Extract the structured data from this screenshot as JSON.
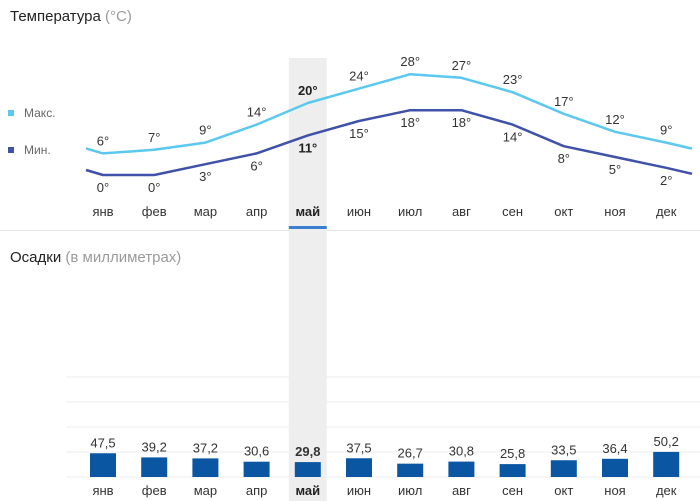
{
  "temperature": {
    "title": "Температура",
    "unit": "(°C)"
  },
  "precipitation": {
    "title": "Осадки",
    "unit": "(в миллиметрах)"
  },
  "selected_month_index": 4,
  "colors": {
    "max": "#5bc8f0",
    "min": "#3f51a8",
    "bar": "#0a56a3",
    "highlight": "#eeeeee",
    "selector": "#3a7fd0",
    "grid": "#eeeeee"
  },
  "chart_data": [
    {
      "type": "line",
      "categories": [
        "янв",
        "фев",
        "мар",
        "апр",
        "май",
        "июн",
        "июл",
        "авг",
        "сен",
        "окт",
        "ноя",
        "дек"
      ],
      "series": [
        {
          "name": "Макс.",
          "values": [
            6,
            7,
            9,
            14,
            20,
            24,
            28,
            27,
            23,
            17,
            12,
            9
          ],
          "labels": [
            "6°",
            "7°",
            "9°",
            "14°",
            "20°",
            "24°",
            "28°",
            "27°",
            "23°",
            "17°",
            "12°",
            "9°"
          ]
        },
        {
          "name": "Мин.",
          "values": [
            0,
            0,
            3,
            6,
            11,
            15,
            18,
            18,
            14,
            8,
            5,
            2
          ],
          "labels": [
            "0°",
            "0°",
            "3°",
            "6°",
            "11°",
            "15°",
            "18°",
            "18°",
            "14°",
            "8°",
            "5°",
            "2°"
          ]
        }
      ],
      "legend": "left",
      "title": "",
      "xlabel": "",
      "ylabel": ""
    },
    {
      "type": "bar",
      "categories": [
        "янв",
        "фев",
        "мар",
        "апр",
        "май",
        "июн",
        "июл",
        "авг",
        "сен",
        "окт",
        "ноя",
        "дек"
      ],
      "values": [
        47.5,
        39.2,
        37.2,
        30.6,
        29.8,
        37.5,
        26.7,
        30.8,
        25.8,
        33.5,
        36.4,
        50.2
      ],
      "labels": [
        "47,5",
        "39,2",
        "37,2",
        "30,6",
        "29,8",
        "37,5",
        "26,7",
        "30,8",
        "25,8",
        "33,5",
        "36,4",
        "50,2"
      ],
      "ylim": [
        0,
        200
      ],
      "grid": true,
      "title": "",
      "xlabel": "",
      "ylabel": ""
    }
  ]
}
